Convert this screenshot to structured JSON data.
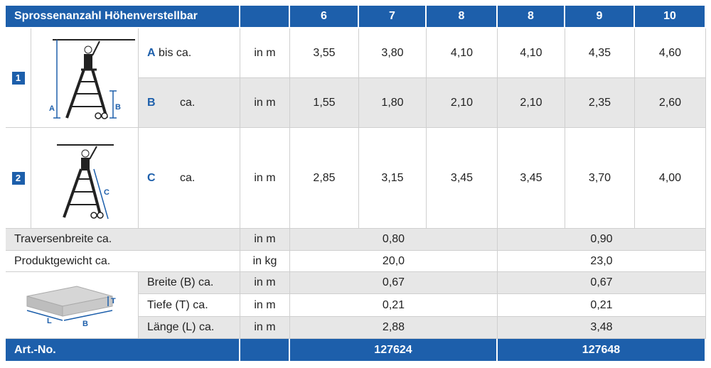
{
  "header": {
    "title": "Sprossenanzahl Höhenverstellbar",
    "columns": [
      "6",
      "7",
      "8",
      "8",
      "9",
      "10"
    ]
  },
  "variants": [
    {
      "number": "1",
      "figure_labels": [
        "A",
        "B"
      ]
    },
    {
      "number": "2",
      "figure_labels": [
        "C"
      ]
    }
  ],
  "dimension_rows": [
    {
      "letter": "A",
      "label": "bis ca.",
      "unit": "in m",
      "values": [
        "3,55",
        "3,80",
        "4,10",
        "4,10",
        "4,35",
        "4,60"
      ]
    },
    {
      "letter": "B",
      "label": "ca.",
      "unit": "in m",
      "values": [
        "1,55",
        "1,80",
        "2,10",
        "2,10",
        "2,35",
        "2,60"
      ]
    },
    {
      "letter": "C",
      "label": "ca.",
      "unit": "in m",
      "values": [
        "2,85",
        "3,15",
        "3,45",
        "3,45",
        "3,70",
        "4,00"
      ]
    }
  ],
  "spec_rows": [
    {
      "label": "Traversenbreite ca.",
      "unit": "in m",
      "values": [
        "0,80",
        "0,90"
      ]
    },
    {
      "label": "Produktgewicht ca.",
      "unit": "in kg",
      "values": [
        "20,0",
        "23,0"
      ]
    }
  ],
  "package": {
    "figure_labels": [
      "T",
      "L",
      "B"
    ],
    "rows": [
      {
        "label": "Breite (B) ca.",
        "unit": "in m",
        "values": [
          "0,67",
          "0,67"
        ]
      },
      {
        "label": "Tiefe (T) ca.",
        "unit": "in m",
        "values": [
          "0,21",
          "0,21"
        ]
      },
      {
        "label": "Länge (L) ca.",
        "unit": "in m",
        "values": [
          "2,88",
          "3,48"
        ]
      }
    ]
  },
  "footer": {
    "label": "Art.-No.",
    "values": [
      "127624",
      "127648"
    ]
  }
}
